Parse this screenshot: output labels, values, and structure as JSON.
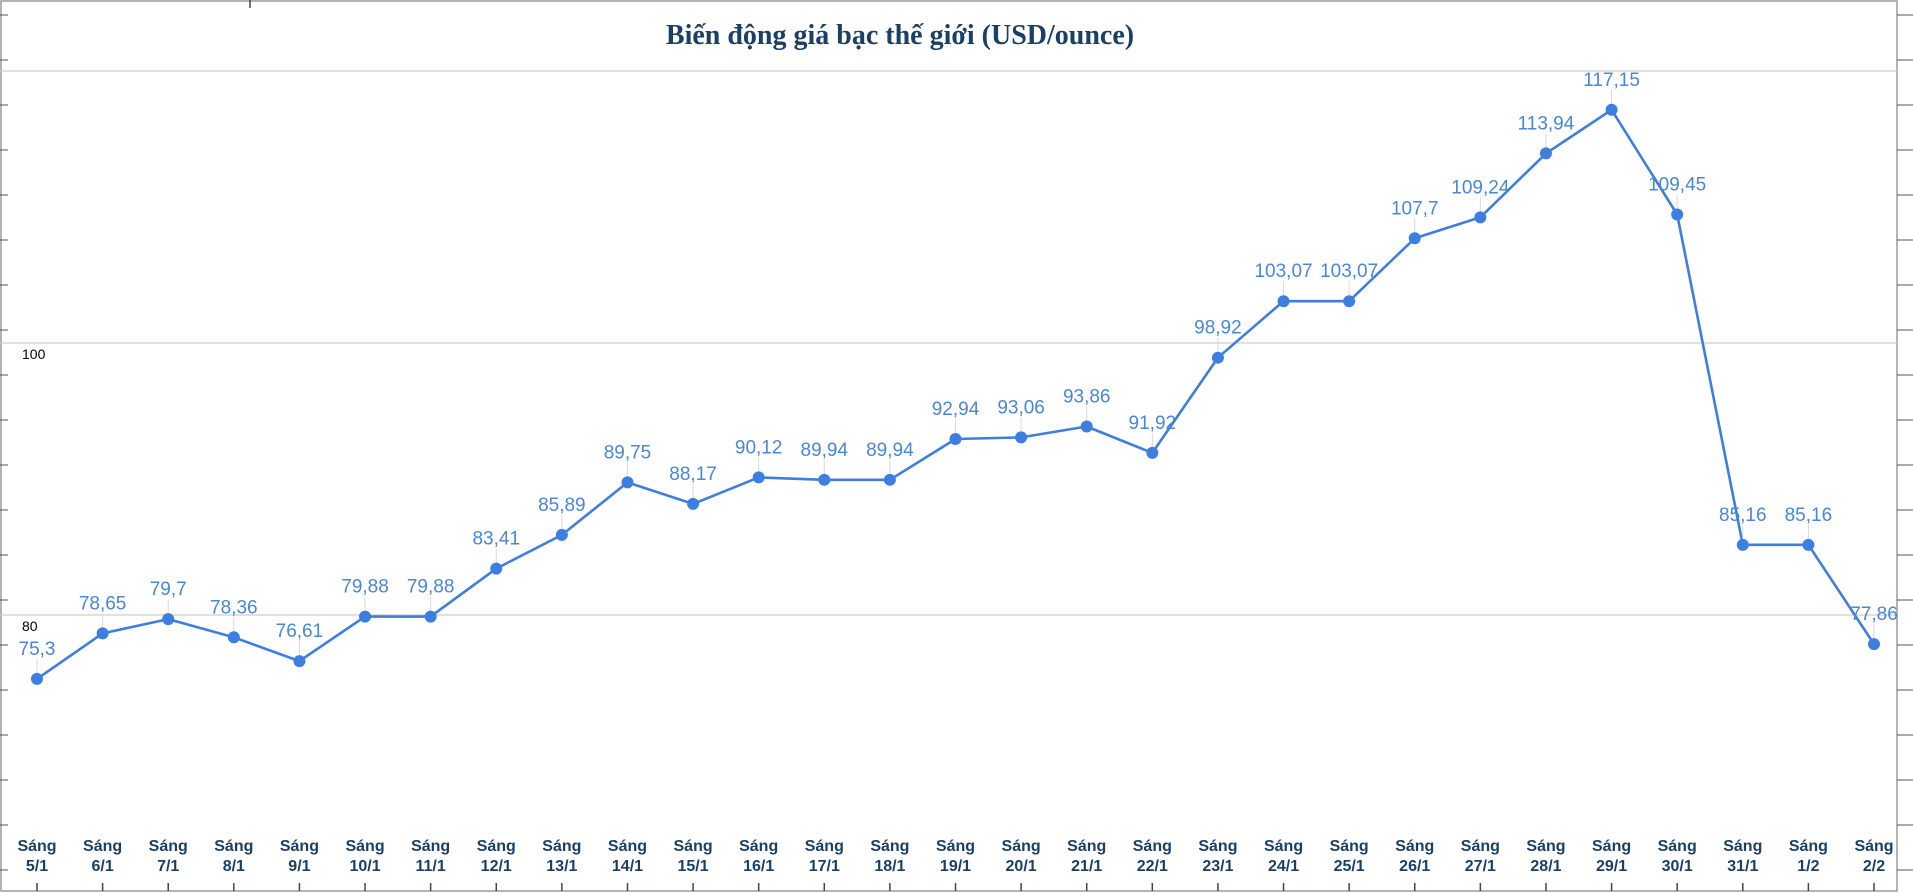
{
  "chart_data": {
    "type": "line",
    "title": "Biến động giá bạc thế giới (USD/ounce)",
    "xlabel": "",
    "ylabel": "",
    "ylim": [
      60,
      125
    ],
    "y_ticks": [
      80,
      100
    ],
    "grid": true,
    "legend": "none",
    "colors": {
      "line": "#3d7ee0",
      "labels": "#4a86d8",
      "x_labels": "#1c3f66",
      "title": "#1c3f66"
    },
    "categories": [
      [
        "Sáng",
        "5/1"
      ],
      [
        "Sáng",
        "6/1"
      ],
      [
        "Sáng",
        "7/1"
      ],
      [
        "Sáng",
        "8/1"
      ],
      [
        "Sáng",
        "9/1"
      ],
      [
        "Sáng",
        "10/1"
      ],
      [
        "Sáng",
        "11/1"
      ],
      [
        "Sáng",
        "12/1"
      ],
      [
        "Sáng",
        "13/1"
      ],
      [
        "Sáng",
        "14/1"
      ],
      [
        "Sáng",
        "15/1"
      ],
      [
        "Sáng",
        "16/1"
      ],
      [
        "Sáng",
        "17/1"
      ],
      [
        "Sáng",
        "18/1"
      ],
      [
        "Sáng",
        "19/1"
      ],
      [
        "Sáng",
        "20/1"
      ],
      [
        "Sáng",
        "21/1"
      ],
      [
        "Sáng",
        "22/1"
      ],
      [
        "Sáng",
        "23/1"
      ],
      [
        "Sáng",
        "24/1"
      ],
      [
        "Sáng",
        "25/1"
      ],
      [
        "Sáng",
        "26/1"
      ],
      [
        "Sáng",
        "27/1"
      ],
      [
        "Sáng",
        "28/1"
      ],
      [
        "Sáng",
        "29/1"
      ],
      [
        "Sáng",
        "30/1"
      ],
      [
        "Sáng",
        "31/1"
      ],
      [
        "Sáng",
        "1/2"
      ],
      [
        "Sáng",
        "2/2"
      ]
    ],
    "values": [
      75.3,
      78.65,
      79.7,
      78.36,
      76.61,
      79.88,
      79.88,
      83.41,
      85.89,
      89.75,
      88.17,
      90.12,
      89.94,
      89.94,
      92.94,
      93.06,
      93.86,
      91.92,
      98.92,
      103.07,
      103.07,
      107.7,
      109.24,
      113.94,
      117.15,
      109.45,
      85.16,
      85.16,
      77.86
    ],
    "data_labels": [
      "75,3",
      "78,65",
      "79,7",
      "78,36",
      "76,61",
      "79,88",
      "79,88",
      "83,41",
      "85,89",
      "89,75",
      "88,17",
      "90,12",
      "89,94",
      "89,94",
      "92,94",
      "93,06",
      "93,86",
      "91,92",
      "98,92",
      "103,07",
      "103,07",
      "107,7",
      "109,24",
      "113,94",
      "117,15",
      "109,45",
      "85,16",
      "85,16",
      "77,86"
    ]
  }
}
